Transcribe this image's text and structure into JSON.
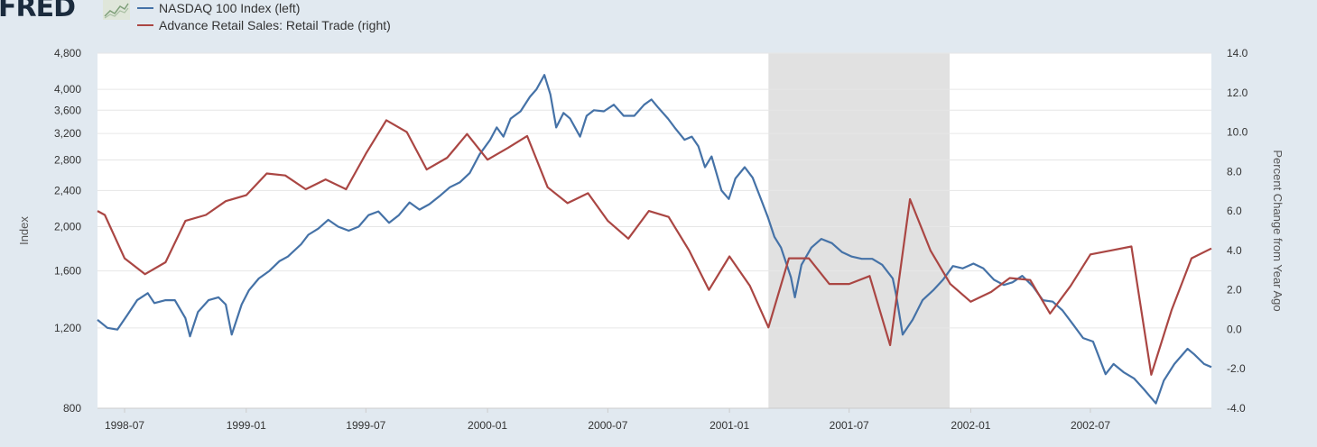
{
  "header": {
    "logo_text": "FRED",
    "logo_icon": "line-chart-icon"
  },
  "colors": {
    "background": "#e1e9f0",
    "plot_background": "#ffffff",
    "gridline": "#e6e6e6",
    "recession_shade": "#e1e1e1",
    "nasdaq": "#4572a7",
    "retail": "#aa4643"
  },
  "chart_data": {
    "type": "line",
    "x_axis": {
      "type": "date",
      "range": [
        "1998-05-21",
        "2002-12-31"
      ],
      "tick_labels": [
        "1998-07",
        "1999-01",
        "1999-07",
        "2000-01",
        "2000-07",
        "2001-01",
        "2001-07",
        "2002-01",
        "2002-07"
      ]
    },
    "y_left": {
      "title": "Index",
      "scale": "log",
      "range": [
        800,
        4800
      ],
      "tick_labels": [
        "800",
        "1,200",
        "1,600",
        "2,000",
        "2,400",
        "2,800",
        "3,200",
        "3,600",
        "4,000",
        "4,800"
      ],
      "tick_values": [
        800,
        1200,
        1600,
        2000,
        2400,
        2800,
        3200,
        3600,
        4000,
        4800
      ]
    },
    "y_right": {
      "title": "Percent Change from Year Ago",
      "scale": "linear",
      "range": [
        -4,
        14
      ],
      "tick_labels": [
        "-4.0",
        "-2.0",
        "0.0",
        "2.0",
        "4.0",
        "6.0",
        "8.0",
        "10.0",
        "12.0",
        "14.0"
      ],
      "tick_values": [
        -4,
        -2,
        0,
        2,
        4,
        6,
        8,
        10,
        12,
        14
      ]
    },
    "recession": {
      "start": "2001-03-01",
      "end": "2001-11-30"
    },
    "grid": true,
    "legend_position": "top-left",
    "series": [
      {
        "name": "NASDAQ 100 Index (left)",
        "axis": "left",
        "color": "#4572a7",
        "points": [
          [
            "1998-05-21",
            1250
          ],
          [
            "1998-06-05",
            1200
          ],
          [
            "1998-06-20",
            1190
          ],
          [
            "1998-07-05",
            1280
          ],
          [
            "1998-07-20",
            1380
          ],
          [
            "1998-08-05",
            1430
          ],
          [
            "1998-08-15",
            1360
          ],
          [
            "1998-09-01",
            1380
          ],
          [
            "1998-09-15",
            1380
          ],
          [
            "1998-10-01",
            1260
          ],
          [
            "1998-10-08",
            1150
          ],
          [
            "1998-10-20",
            1300
          ],
          [
            "1998-11-05",
            1380
          ],
          [
            "1998-11-20",
            1400
          ],
          [
            "1998-12-01",
            1350
          ],
          [
            "1998-12-10",
            1160
          ],
          [
            "1998-12-25",
            1350
          ],
          [
            "1999-01-05",
            1450
          ],
          [
            "1999-01-20",
            1540
          ],
          [
            "1999-02-05",
            1600
          ],
          [
            "1999-02-20",
            1680
          ],
          [
            "1999-03-05",
            1720
          ],
          [
            "1999-03-25",
            1830
          ],
          [
            "1999-04-05",
            1920
          ],
          [
            "1999-04-20",
            1980
          ],
          [
            "1999-05-05",
            2070
          ],
          [
            "1999-05-20",
            2000
          ],
          [
            "1999-06-05",
            1960
          ],
          [
            "1999-06-20",
            2000
          ],
          [
            "1999-07-05",
            2120
          ],
          [
            "1999-07-20",
            2160
          ],
          [
            "1999-08-05",
            2040
          ],
          [
            "1999-08-20",
            2120
          ],
          [
            "1999-09-05",
            2260
          ],
          [
            "1999-09-20",
            2180
          ],
          [
            "1999-10-05",
            2240
          ],
          [
            "1999-10-20",
            2330
          ],
          [
            "1999-11-05",
            2440
          ],
          [
            "1999-11-20",
            2500
          ],
          [
            "1999-12-05",
            2620
          ],
          [
            "1999-12-20",
            2880
          ],
          [
            "2000-01-05",
            3100
          ],
          [
            "2000-01-15",
            3300
          ],
          [
            "2000-01-25",
            3150
          ],
          [
            "2000-02-05",
            3450
          ],
          [
            "2000-02-20",
            3580
          ],
          [
            "2000-03-05",
            3850
          ],
          [
            "2000-03-15",
            4000
          ],
          [
            "2000-03-27",
            4300
          ],
          [
            "2000-04-05",
            3900
          ],
          [
            "2000-04-14",
            3300
          ],
          [
            "2000-04-25",
            3550
          ],
          [
            "2000-05-05",
            3450
          ],
          [
            "2000-05-20",
            3150
          ],
          [
            "2000-05-30",
            3500
          ],
          [
            "2000-06-10",
            3600
          ],
          [
            "2000-06-25",
            3580
          ],
          [
            "2000-07-10",
            3700
          ],
          [
            "2000-07-25",
            3500
          ],
          [
            "2000-08-10",
            3500
          ],
          [
            "2000-08-25",
            3700
          ],
          [
            "2000-09-05",
            3800
          ],
          [
            "2000-09-15",
            3650
          ],
          [
            "2000-09-30",
            3450
          ],
          [
            "2000-10-10",
            3300
          ],
          [
            "2000-10-25",
            3100
          ],
          [
            "2000-11-05",
            3150
          ],
          [
            "2000-11-15",
            3000
          ],
          [
            "2000-11-25",
            2700
          ],
          [
            "2000-12-05",
            2850
          ],
          [
            "2000-12-20",
            2400
          ],
          [
            "2000-12-31",
            2300
          ],
          [
            "2001-01-10",
            2550
          ],
          [
            "2001-01-24",
            2700
          ],
          [
            "2001-02-05",
            2560
          ],
          [
            "2001-02-15",
            2350
          ],
          [
            "2001-02-28",
            2100
          ],
          [
            "2001-03-10",
            1900
          ],
          [
            "2001-03-20",
            1800
          ],
          [
            "2001-04-04",
            1550
          ],
          [
            "2001-04-10",
            1400
          ],
          [
            "2001-04-20",
            1650
          ],
          [
            "2001-05-05",
            1800
          ],
          [
            "2001-05-20",
            1880
          ],
          [
            "2001-06-05",
            1840
          ],
          [
            "2001-06-20",
            1760
          ],
          [
            "2001-07-05",
            1720
          ],
          [
            "2001-07-20",
            1700
          ],
          [
            "2001-08-05",
            1700
          ],
          [
            "2001-08-20",
            1650
          ],
          [
            "2001-09-05",
            1540
          ],
          [
            "2001-09-10",
            1420
          ],
          [
            "2001-09-20",
            1160
          ],
          [
            "2001-10-05",
            1250
          ],
          [
            "2001-10-20",
            1380
          ],
          [
            "2001-11-05",
            1450
          ],
          [
            "2001-11-20",
            1530
          ],
          [
            "2001-12-05",
            1640
          ],
          [
            "2001-12-20",
            1620
          ],
          [
            "2002-01-05",
            1660
          ],
          [
            "2002-01-20",
            1620
          ],
          [
            "2002-02-05",
            1530
          ],
          [
            "2002-02-20",
            1490
          ],
          [
            "2002-03-05",
            1510
          ],
          [
            "2002-03-20",
            1560
          ],
          [
            "2002-04-05",
            1480
          ],
          [
            "2002-04-20",
            1380
          ],
          [
            "2002-05-05",
            1370
          ],
          [
            "2002-05-20",
            1310
          ],
          [
            "2002-06-05",
            1220
          ],
          [
            "2002-06-20",
            1140
          ],
          [
            "2002-07-05",
            1120
          ],
          [
            "2002-07-24",
            950
          ],
          [
            "2002-08-05",
            1000
          ],
          [
            "2002-08-20",
            960
          ],
          [
            "2002-09-05",
            930
          ],
          [
            "2002-09-20",
            880
          ],
          [
            "2002-10-08",
            820
          ],
          [
            "2002-10-20",
            920
          ],
          [
            "2002-11-05",
            1000
          ],
          [
            "2002-11-25",
            1080
          ],
          [
            "2002-12-05",
            1050
          ],
          [
            "2002-12-20",
            1000
          ],
          [
            "2002-12-31",
            985
          ]
        ]
      },
      {
        "name": "Advance Retail Sales: Retail Trade (right)",
        "axis": "right",
        "color": "#aa4643",
        "points": [
          [
            "1998-05-21",
            6.0
          ],
          [
            "1998-06-01",
            5.8
          ],
          [
            "1998-07-01",
            3.6
          ],
          [
            "1998-08-01",
            2.8
          ],
          [
            "1998-09-01",
            3.4
          ],
          [
            "1998-10-01",
            5.5
          ],
          [
            "1998-11-01",
            5.8
          ],
          [
            "1998-12-01",
            6.5
          ],
          [
            "1999-01-01",
            6.8
          ],
          [
            "1999-02-01",
            7.9
          ],
          [
            "1999-03-01",
            7.8
          ],
          [
            "1999-04-01",
            7.1
          ],
          [
            "1999-05-01",
            7.6
          ],
          [
            "1999-06-01",
            7.1
          ],
          [
            "1999-07-01",
            8.9
          ],
          [
            "1999-08-01",
            10.6
          ],
          [
            "1999-09-01",
            10.0
          ],
          [
            "1999-10-01",
            8.1
          ],
          [
            "1999-11-01",
            8.7
          ],
          [
            "1999-12-01",
            9.9
          ],
          [
            "2000-01-01",
            8.6
          ],
          [
            "2000-02-01",
            9.2
          ],
          [
            "2000-03-01",
            9.8
          ],
          [
            "2000-04-01",
            7.2
          ],
          [
            "2000-05-01",
            6.4
          ],
          [
            "2000-06-01",
            6.9
          ],
          [
            "2000-07-01",
            5.5
          ],
          [
            "2000-08-01",
            4.6
          ],
          [
            "2000-09-01",
            6.0
          ],
          [
            "2000-10-01",
            5.7
          ],
          [
            "2000-11-01",
            4.0
          ],
          [
            "2000-12-01",
            2.0
          ],
          [
            "2001-01-01",
            3.7
          ],
          [
            "2001-02-01",
            2.2
          ],
          [
            "2001-03-01",
            0.1
          ],
          [
            "2001-04-01",
            3.6
          ],
          [
            "2001-05-01",
            3.6
          ],
          [
            "2001-06-01",
            2.3
          ],
          [
            "2001-07-01",
            2.3
          ],
          [
            "2001-08-01",
            2.7
          ],
          [
            "2001-09-01",
            -0.8
          ],
          [
            "2001-10-01",
            6.6
          ],
          [
            "2001-11-01",
            4.0
          ],
          [
            "2001-12-01",
            2.3
          ],
          [
            "2002-01-01",
            1.4
          ],
          [
            "2002-02-01",
            1.9
          ],
          [
            "2002-03-01",
            2.6
          ],
          [
            "2002-04-01",
            2.5
          ],
          [
            "2002-05-01",
            0.8
          ],
          [
            "2002-06-01",
            2.2
          ],
          [
            "2002-07-01",
            3.8
          ],
          [
            "2002-08-01",
            4.0
          ],
          [
            "2002-09-01",
            4.2
          ],
          [
            "2002-10-01",
            -2.3
          ],
          [
            "2002-11-01",
            1.0
          ],
          [
            "2002-12-01",
            3.6
          ],
          [
            "2002-12-31",
            4.1
          ]
        ]
      }
    ]
  }
}
